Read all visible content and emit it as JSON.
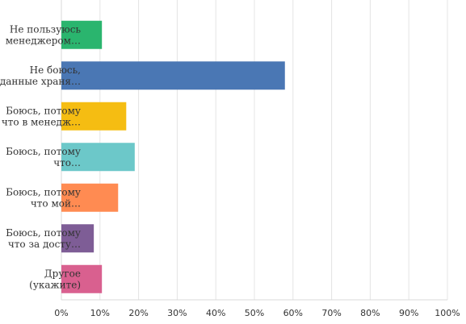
{
  "chart_data": {
    "type": "bar",
    "orientation": "horizontal",
    "categories": [
      [
        "Не пользуюсь",
        "менеджером…"
      ],
      [
        "Не боюсь,",
        "данные храня…"
      ],
      [
        "Боюсь, потому",
        "что в менедж…"
      ],
      [
        "Боюсь, потому",
        "что…"
      ],
      [
        "Боюсь, потому",
        "что мой…"
      ],
      [
        "Боюсь, потому",
        "что за досту…"
      ],
      [
        "Другое",
        "(укажите)"
      ]
    ],
    "values": [
      10.5,
      57.9,
      16.8,
      19.0,
      14.7,
      8.4,
      10.5
    ],
    "colors": [
      "#2ab56e",
      "#4a77b4",
      "#f5bd12",
      "#6cc8c9",
      "#ff8b52",
      "#7e5d96",
      "#d9608f"
    ],
    "xlim": [
      0,
      100
    ],
    "x_ticks": [
      "0%",
      "10%",
      "20%",
      "30%",
      "40%",
      "50%",
      "60%",
      "70%",
      "80%",
      "90%",
      "100%"
    ],
    "grid": true,
    "title": "",
    "xlabel": "",
    "ylabel": ""
  }
}
